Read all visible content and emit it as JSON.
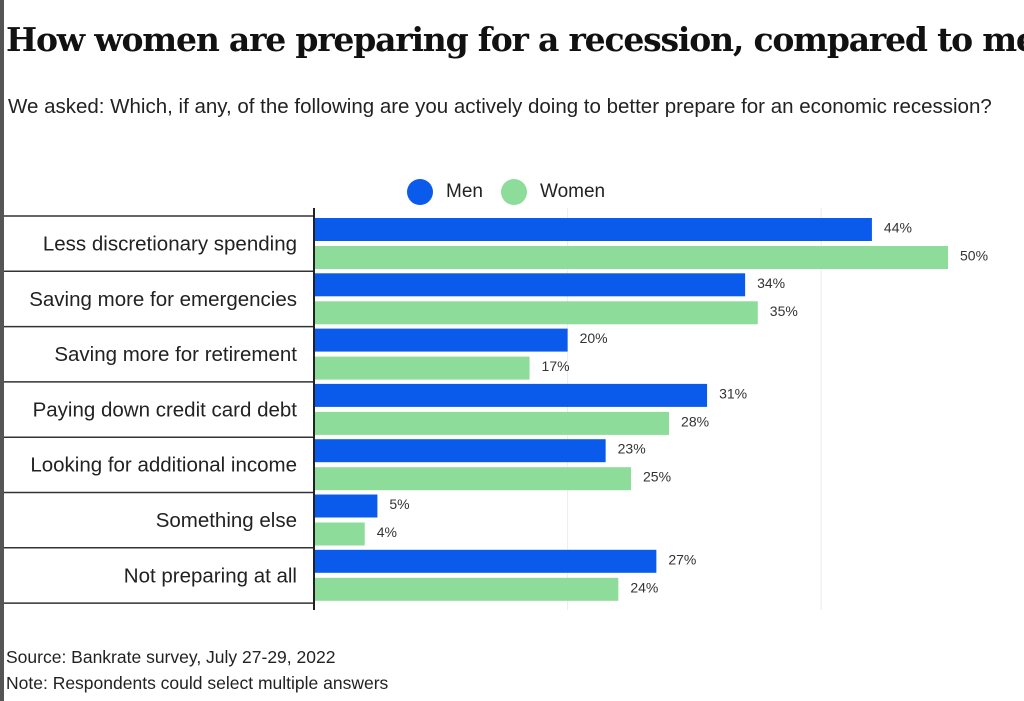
{
  "title": "How women are preparing for a recession, compared to men",
  "subtitle": "We asked: Which, if any, of the following are you actively doing to better prepare for an economic recession?",
  "colors": {
    "men": "#0a5bec",
    "women": "#8ddc99"
  },
  "chart_data": {
    "type": "bar",
    "orientation": "horizontal",
    "categories": [
      "Less discretionary spending",
      "Saving more for emergencies",
      "Saving more for retirement",
      "Paying down credit card debt",
      "Looking for additional income",
      "Something else",
      "Not preparing at all"
    ],
    "series": [
      {
        "name": "Men",
        "values": [
          44,
          34,
          20,
          31,
          23,
          5,
          27
        ]
      },
      {
        "name": "Women",
        "values": [
          50,
          35,
          17,
          28,
          25,
          4,
          24
        ]
      }
    ],
    "data_labels": {
      "Men": [
        "44%",
        "34%",
        "20%",
        "31%",
        "23%",
        "5%",
        "27%"
      ],
      "Women": [
        "50%",
        "35%",
        "17%",
        "28%",
        "25%",
        "4%",
        "24%"
      ]
    },
    "xlim": [
      0,
      50
    ],
    "grid": true,
    "legend_position": "top-center"
  },
  "footer": {
    "source": "Source: Bankrate survey, July 27-29, 2022",
    "note": "Note: Respondents could select multiple answers"
  }
}
